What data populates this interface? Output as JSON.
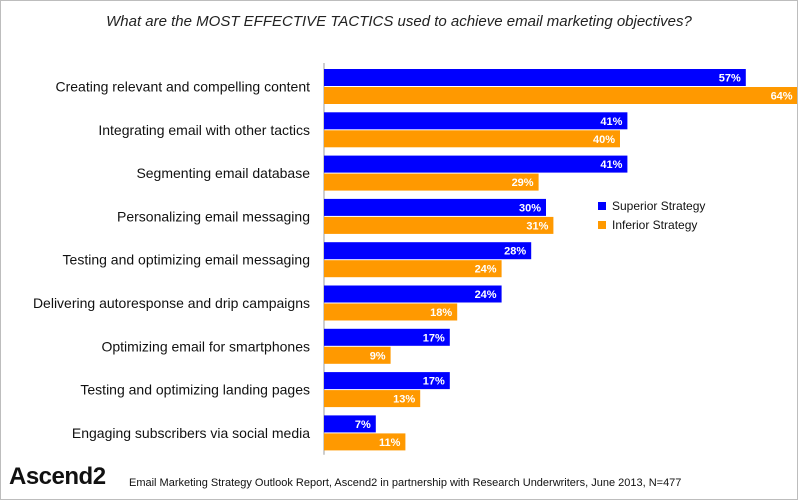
{
  "chart_data": {
    "type": "bar",
    "orientation": "horizontal",
    "title": "What are the MOST EFFECTIVE TACTICS used to achieve email marketing objectives?",
    "categories": [
      "Creating relevant and compelling content",
      "Integrating email with other tactics",
      "Segmenting email database",
      "Personalizing email messaging",
      "Testing and optimizing email messaging",
      "Delivering autoresponse and drip campaigns",
      "Optimizing email for smartphones",
      "Testing and optimizing landing pages",
      "Engaging subscribers via social media"
    ],
    "series": [
      {
        "name": "Superior Strategy",
        "color": "#0000ff",
        "values": [
          57,
          41,
          41,
          30,
          28,
          24,
          17,
          17,
          7
        ],
        "labels": [
          "57%",
          "41%",
          "41%",
          "30%",
          "28%",
          "24%",
          "17%",
          "17%",
          "7%"
        ]
      },
      {
        "name": "Inferior Strategy",
        "color": "#ff9900",
        "values": [
          64,
          40,
          29,
          31,
          24,
          18,
          9,
          13,
          11
        ],
        "labels": [
          "64%",
          "40%",
          "29%",
          "31%",
          "24%",
          "18%",
          "9%",
          "13%",
          "11%"
        ]
      }
    ],
    "xlim": [
      0,
      70
    ],
    "grid": false,
    "legend": "right"
  },
  "branding": {
    "logo_text": "Ascend2"
  },
  "footer": {
    "source": "Email Marketing Strategy Outlook Report, Ascend2 in partnership with Research Underwriters, June 2013, N=477"
  }
}
